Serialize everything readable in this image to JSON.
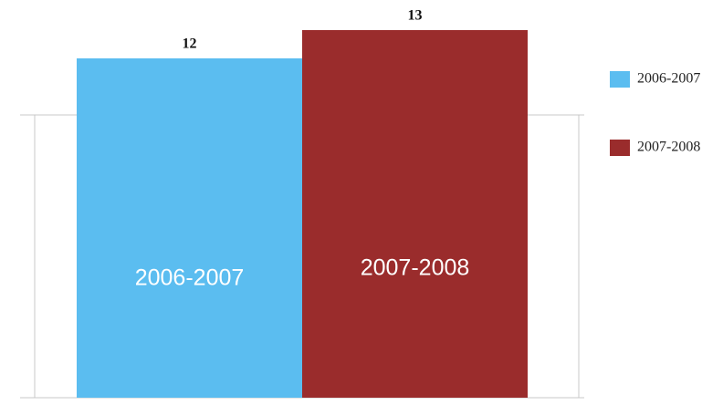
{
  "chart_data": {
    "type": "bar",
    "series": [
      {
        "name": "2006-2007",
        "color": "#5bbdf0",
        "values": [
          12
        ]
      },
      {
        "name": "2007-2008",
        "color": "#9a2c2c",
        "values": [
          13
        ]
      }
    ],
    "ylim": [
      0,
      14
    ],
    "yticks": [
      0,
      10
    ],
    "grid": true,
    "legend": "right"
  }
}
